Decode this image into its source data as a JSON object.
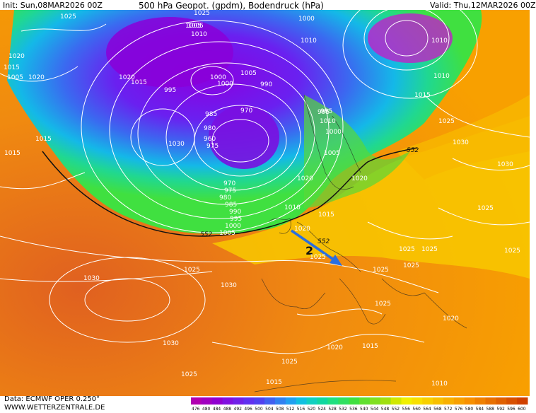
{
  "header": {
    "init": "Init: Sun,08MAR2026 00Z",
    "title": "500 hPa Geopot. (gpdm), Bodendruck (hPa)",
    "valid": "Valid: Thu,12MAR2026 00Z"
  },
  "footer": {
    "data": "Data: ECMWF OPER 0.250°",
    "site": "WWW.WETTERZENTRALE.DE"
  },
  "colorbar": {
    "labels": [
      "476",
      "480",
      "484",
      "488",
      "492",
      "496",
      "500",
      "504",
      "508",
      "512",
      "516",
      "520",
      "524",
      "528",
      "532",
      "536",
      "540",
      "544",
      "548",
      "552",
      "556",
      "560",
      "564",
      "568",
      "572",
      "576",
      "580",
      "584",
      "588",
      "592",
      "596",
      "600"
    ],
    "colors": [
      "#b000b0",
      "#a000c0",
      "#9000d0",
      "#8010e0",
      "#7020e8",
      "#6030f0",
      "#5040f0",
      "#4060f0",
      "#3080f0",
      "#20a0f0",
      "#10c0e0",
      "#10d0c0",
      "#10d8a0",
      "#20e080",
      "#30e060",
      "#40e040",
      "#60e030",
      "#80e020",
      "#a0e010",
      "#d0e800",
      "#f0f000",
      "#f8e000",
      "#f8d000",
      "#f8c000",
      "#f8b000",
      "#f8a000",
      "#f89000",
      "#f08000",
      "#e87000",
      "#e06000",
      "#d85000",
      "#d04000"
    ]
  },
  "isobar_labels": [
    "1025",
    "1020",
    "1015",
    "1005",
    "1010",
    "1015",
    "1005",
    "1020",
    "1015",
    "995",
    "985",
    "980",
    "1000",
    "1000",
    "1005",
    "990",
    "970",
    "960",
    "975",
    "970",
    "975",
    "980",
    "985",
    "990",
    "995",
    "1000",
    "1005",
    "1010",
    "1015",
    "1020",
    "1025",
    "1030",
    "1030",
    "1030",
    "1025",
    "1020",
    "1025",
    "1025",
    "1025",
    "1010",
    "995",
    "1000",
    "1005",
    "1010",
    "1015",
    "1025",
    "1030",
    "1025",
    "1025",
    "1030",
    "1020",
    "1015",
    "1010",
    "1000",
    "1005",
    "1020",
    "1025",
    "1025",
    "1015",
    "1020",
    "1025",
    "1025",
    "1010",
    "1015",
    "1020",
    "1025",
    "1030",
    "995",
    "1010"
  ],
  "contour_labels": [
    "552",
    "552",
    "552"
  ],
  "annotation": {
    "label": "2"
  }
}
